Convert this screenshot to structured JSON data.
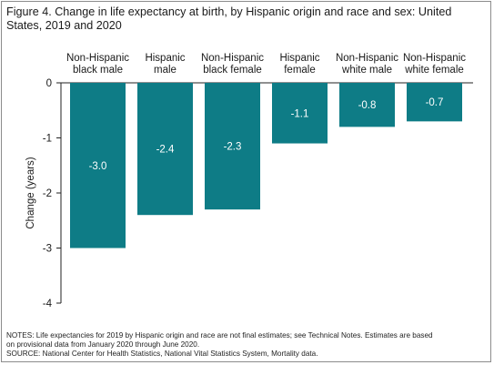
{
  "title": "Figure 4. Change in life expectancy at birth, by Hispanic origin and race and sex: United States, 2019 and 2020",
  "notes": [
    "NOTES: Life expectancies for 2019 by Hispanic origin and race are not final estimates; see Technical Notes. Estimates are based",
    "on provisional data from January 2020 through June 2020.",
    "SOURCE: National Center for Health Statistics, National Vital Statistics System, Mortality data."
  ],
  "colors": {
    "bar": "#0e7c86",
    "axis": "#222222",
    "bar_label": "#ffffff"
  },
  "chart_data": {
    "type": "bar",
    "categories": [
      [
        "Non-Hispanic",
        "black male"
      ],
      [
        "Hispanic",
        "male"
      ],
      [
        "Non-Hispanic",
        "black female"
      ],
      [
        "Hispanic",
        "female"
      ],
      [
        "Non-Hispanic",
        "white male"
      ],
      [
        "Non-Hispanic",
        "white female"
      ]
    ],
    "values": [
      -3.0,
      -2.4,
      -2.3,
      -1.1,
      -0.8,
      -0.7
    ],
    "data_labels": [
      "-3.0",
      "-2.4",
      "-2.3",
      "-1.1",
      "-0.8",
      "-0.7"
    ],
    "xlabel": "",
    "ylabel": "Change (years)",
    "ylim": [
      -4,
      0
    ],
    "yticks": [
      0,
      -1,
      -2,
      -3,
      -4
    ],
    "grid": false,
    "legend": "none"
  }
}
